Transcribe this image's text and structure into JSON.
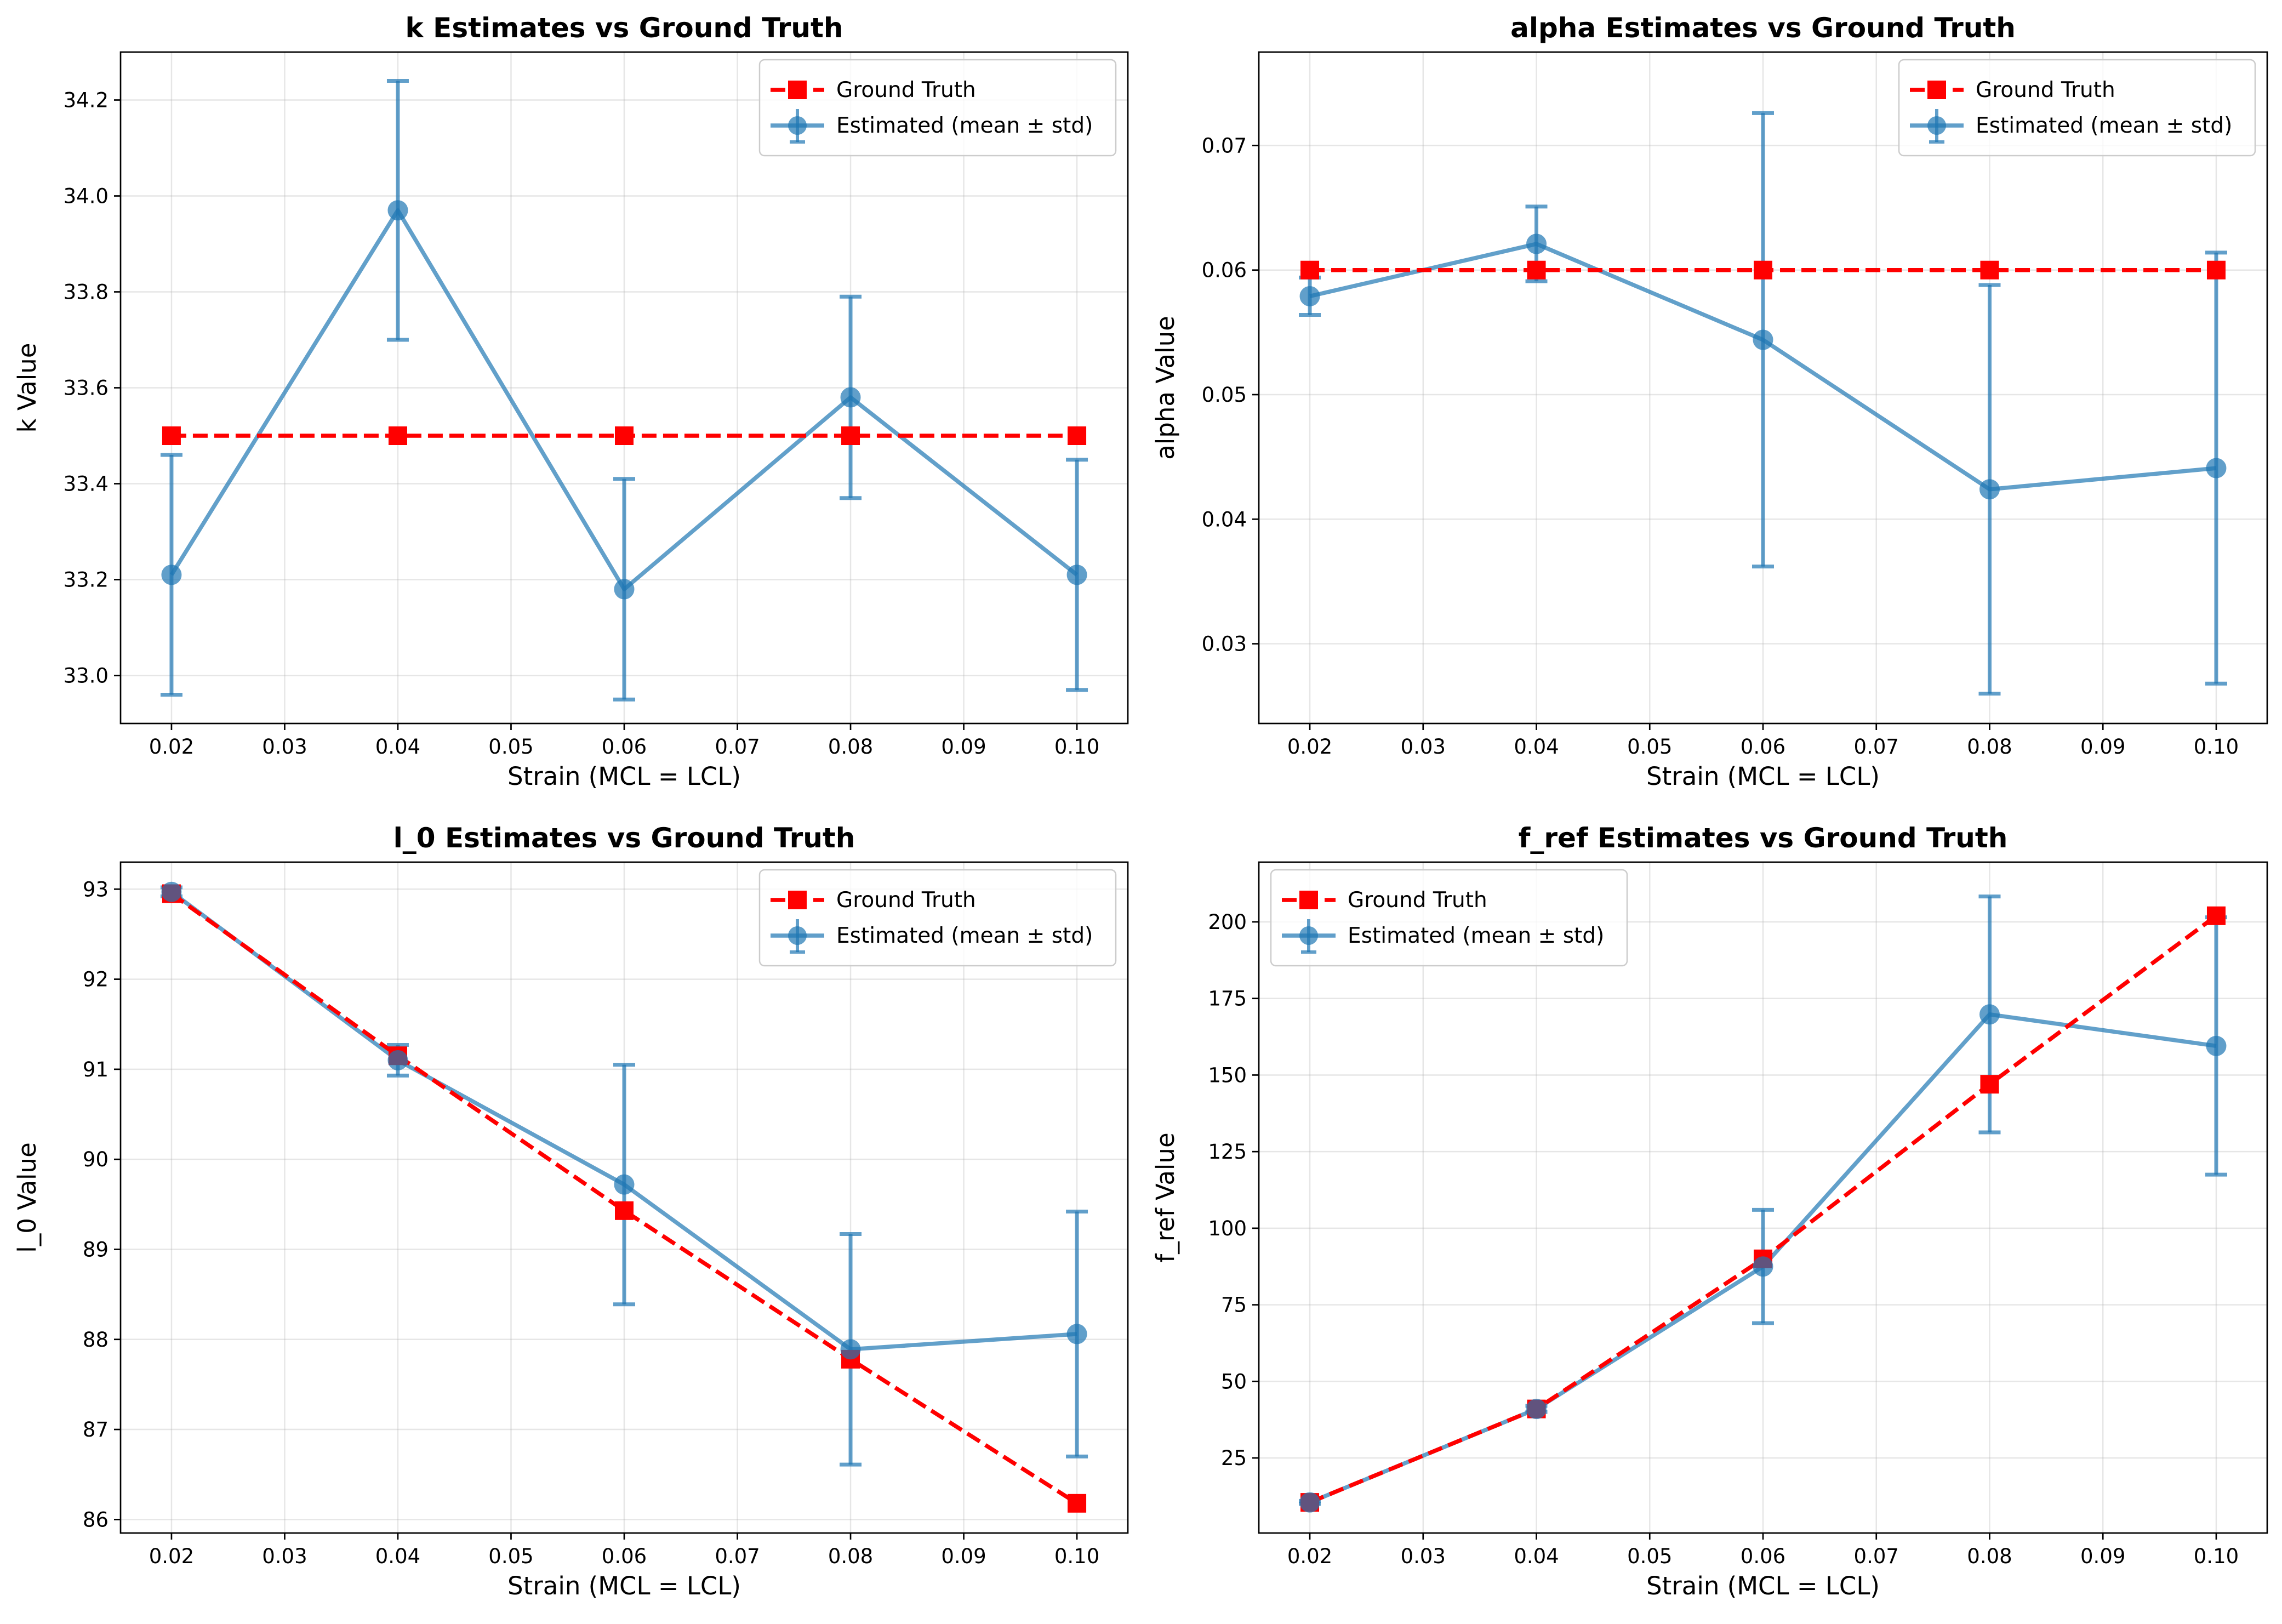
{
  "colors": {
    "ground_truth": "#ff0000",
    "estimated": "#1f77b4"
  },
  "chart_data": [
    {
      "type": "line",
      "title": "k Estimates vs Ground Truth",
      "xlabel": "Strain (MCL = LCL)",
      "ylabel": "k Value",
      "x": [
        0.02,
        0.04,
        0.06,
        0.08,
        0.1
      ],
      "xlim": [
        0.0155,
        0.1045
      ],
      "ylim": [
        32.9,
        34.3
      ],
      "xticks": [
        0.02,
        0.03,
        0.04,
        0.05,
        0.06,
        0.07,
        0.08,
        0.09,
        0.1
      ],
      "xtick_labels": [
        "0.02",
        "0.03",
        "0.04",
        "0.05",
        "0.06",
        "0.07",
        "0.08",
        "0.09",
        "0.10"
      ],
      "yticks": [
        33.0,
        33.2,
        33.4,
        33.6,
        33.8,
        34.0,
        34.2
      ],
      "ytick_labels": [
        "33.0",
        "33.2",
        "33.4",
        "33.6",
        "33.8",
        "34.0",
        "34.2"
      ],
      "legend_position": "upper right",
      "grid": true,
      "series": [
        {
          "name": "Ground Truth",
          "style": "dashed-square",
          "values": [
            33.5,
            33.5,
            33.5,
            33.5,
            33.5
          ]
        },
        {
          "name": "Estimated (mean ± std)",
          "style": "solid-circle-errorbar",
          "values": [
            33.21,
            33.97,
            33.18,
            33.58,
            33.21
          ],
          "std": [
            0.25,
            0.27,
            0.23,
            0.21,
            0.24
          ]
        }
      ]
    },
    {
      "type": "line",
      "title": "alpha Estimates vs Ground Truth",
      "xlabel": "Strain (MCL = LCL)",
      "ylabel": "alpha Value",
      "x": [
        0.02,
        0.04,
        0.06,
        0.08,
        0.1
      ],
      "xlim": [
        0.0155,
        0.1045
      ],
      "ylim": [
        0.0236,
        0.0775
      ],
      "xticks": [
        0.02,
        0.03,
        0.04,
        0.05,
        0.06,
        0.07,
        0.08,
        0.09,
        0.1
      ],
      "xtick_labels": [
        "0.02",
        "0.03",
        "0.04",
        "0.05",
        "0.06",
        "0.07",
        "0.08",
        "0.09",
        "0.10"
      ],
      "yticks": [
        0.03,
        0.04,
        0.05,
        0.06,
        0.07
      ],
      "ytick_labels": [
        "0.03",
        "0.04",
        "0.05",
        "0.06",
        "0.07"
      ],
      "legend_position": "upper right",
      "grid": true,
      "series": [
        {
          "name": "Ground Truth",
          "style": "dashed-square",
          "values": [
            0.06,
            0.06,
            0.06,
            0.06,
            0.06
          ]
        },
        {
          "name": "Estimated (mean ± std)",
          "style": "solid-circle-errorbar",
          "values": [
            0.0579,
            0.0621,
            0.0544,
            0.0424,
            0.0441
          ],
          "std": [
            0.0015,
            0.003,
            0.0182,
            0.0164,
            0.0173
          ]
        }
      ]
    },
    {
      "type": "line",
      "title": "l_0 Estimates vs Ground Truth",
      "xlabel": "Strain (MCL = LCL)",
      "ylabel": "l_0 Value",
      "x": [
        0.02,
        0.04,
        0.06,
        0.08,
        0.1
      ],
      "xlim": [
        0.0155,
        0.1045
      ],
      "ylim": [
        85.85,
        93.3
      ],
      "xticks": [
        0.02,
        0.03,
        0.04,
        0.05,
        0.06,
        0.07,
        0.08,
        0.09,
        0.1
      ],
      "xtick_labels": [
        "0.02",
        "0.03",
        "0.04",
        "0.05",
        "0.06",
        "0.07",
        "0.08",
        "0.09",
        "0.10"
      ],
      "yticks": [
        86,
        87,
        88,
        89,
        90,
        91,
        92,
        93
      ],
      "ytick_labels": [
        "86",
        "87",
        "88",
        "89",
        "90",
        "91",
        "92",
        "93"
      ],
      "legend_position": "upper right",
      "grid": true,
      "series": [
        {
          "name": "Ground Truth",
          "style": "dashed-square",
          "values": [
            92.95,
            91.15,
            89.43,
            87.78,
            86.18
          ]
        },
        {
          "name": "Estimated (mean ± std)",
          "style": "solid-circle-errorbar",
          "values": [
            92.97,
            91.1,
            89.72,
            87.89,
            88.06
          ],
          "std": [
            0.05,
            0.17,
            1.33,
            1.28,
            1.36
          ]
        }
      ]
    },
    {
      "type": "line",
      "title": "f_ref Estimates vs Ground Truth",
      "xlabel": "Strain (MCL = LCL)",
      "ylabel": "f_ref Value",
      "x": [
        0.02,
        0.04,
        0.06,
        0.08,
        0.1
      ],
      "xlim": [
        0.0155,
        0.1045
      ],
      "ylim": [
        0.5,
        219.5
      ],
      "xticks": [
        0.02,
        0.03,
        0.04,
        0.05,
        0.06,
        0.07,
        0.08,
        0.09,
        0.1
      ],
      "xtick_labels": [
        "0.02",
        "0.03",
        "0.04",
        "0.05",
        "0.06",
        "0.07",
        "0.08",
        "0.09",
        "0.10"
      ],
      "yticks": [
        25,
        50,
        75,
        100,
        125,
        150,
        175,
        200
      ],
      "ytick_labels": [
        "25",
        "50",
        "75",
        "100",
        "125",
        "150",
        "175",
        "200"
      ],
      "legend_position": "upper left",
      "grid": true,
      "series": [
        {
          "name": "Ground Truth",
          "style": "dashed-square",
          "values": [
            10.5,
            41,
            90,
            147,
            202
          ]
        },
        {
          "name": "Estimated (mean ± std)",
          "style": "solid-circle-errorbar",
          "values": [
            10.5,
            41,
            87.5,
            169.8,
            159.5
          ],
          "std": [
            0.5,
            1.0,
            18.5,
            38.5,
            42.0
          ]
        }
      ]
    }
  ]
}
